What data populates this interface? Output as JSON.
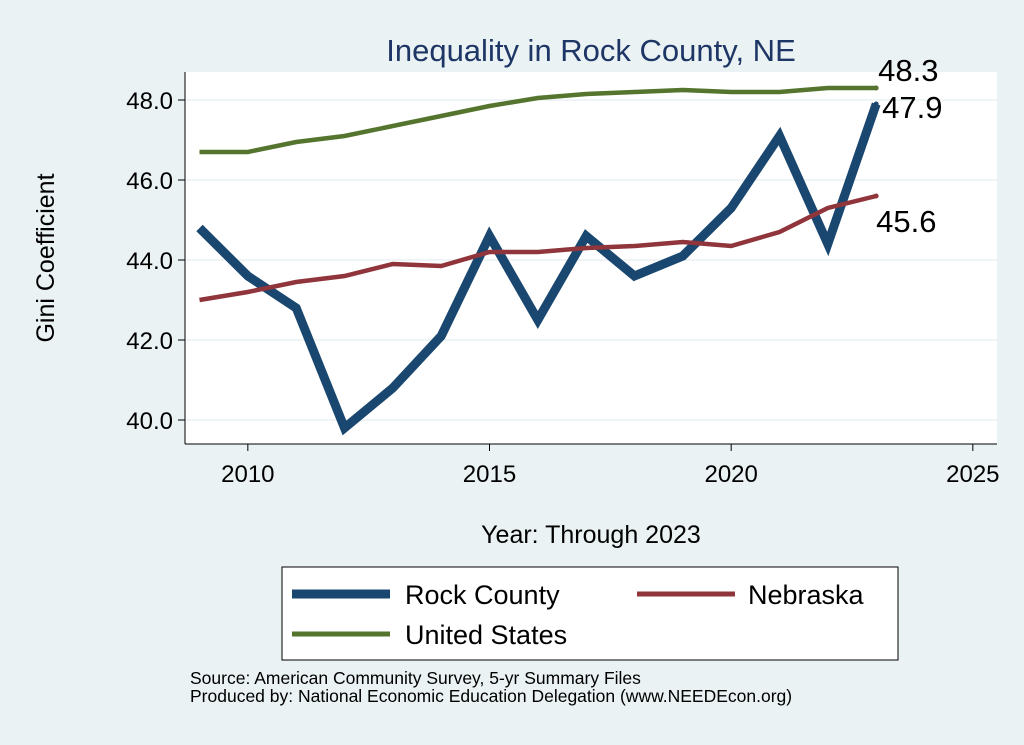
{
  "chart_data": {
    "type": "line",
    "title": "Inequality in Rock County, NE",
    "xlabel": "Year: Through 2023",
    "ylabel": "Gini Coefficient",
    "xlim": [
      2008.7,
      2025.5
    ],
    "ylim": [
      39.4,
      48.7
    ],
    "x_ticks": [
      2010,
      2015,
      2020,
      2025
    ],
    "y_ticks": [
      40,
      42,
      44,
      46,
      48
    ],
    "y_tick_labels": [
      "40.0",
      "42.0",
      "44.0",
      "46.0",
      "48.0"
    ],
    "grid": true,
    "legend_position": "bottom",
    "x": [
      2009,
      2010,
      2011,
      2012,
      2013,
      2014,
      2015,
      2016,
      2017,
      2018,
      2019,
      2020,
      2021,
      2022,
      2023
    ],
    "series": [
      {
        "name": "Rock County",
        "color": "#1a476f",
        "values": [
          44.8,
          43.6,
          42.8,
          39.8,
          40.8,
          42.1,
          44.6,
          42.5,
          44.6,
          43.6,
          44.1,
          45.3,
          47.1,
          44.4,
          47.9
        ],
        "end_label": "47.9"
      },
      {
        "name": "Nebraska",
        "color": "#90353b",
        "values": [
          43.0,
          43.2,
          43.45,
          43.6,
          43.9,
          43.85,
          44.2,
          44.2,
          44.3,
          44.35,
          44.45,
          44.35,
          44.7,
          45.3,
          45.6
        ],
        "end_label": "45.6"
      },
      {
        "name": "United States",
        "color": "#55752f",
        "values": [
          46.7,
          46.7,
          46.95,
          47.1,
          47.35,
          47.6,
          47.85,
          48.05,
          48.15,
          48.2,
          48.25,
          48.2,
          48.2,
          48.3,
          48.3
        ],
        "end_label": "48.3"
      }
    ]
  },
  "footer": {
    "source": "Source: American Community Survey, 5-yr Summary Files",
    "produced_by": "Produced by: National Economic Education Delegation (www.NEEDEcon.org)"
  }
}
